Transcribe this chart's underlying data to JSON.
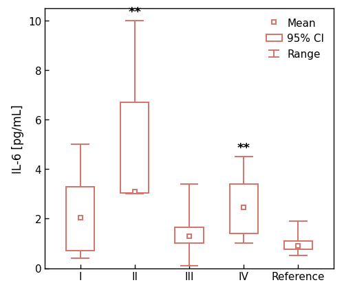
{
  "categories": [
    "I",
    "II",
    "III",
    "IV",
    "Reference"
  ],
  "mean": [
    2.05,
    3.1,
    1.3,
    2.45,
    0.9
  ],
  "ci_low": [
    0.7,
    3.05,
    1.0,
    1.4,
    0.75
  ],
  "ci_high": [
    3.3,
    6.7,
    1.65,
    3.4,
    1.1
  ],
  "range_low": [
    0.4,
    3.0,
    0.1,
    1.0,
    0.5
  ],
  "range_high": [
    5.0,
    10.0,
    3.4,
    4.5,
    1.9
  ],
  "sig_labels": [
    "",
    "**",
    "",
    "**",
    ""
  ],
  "ylabel": "IL-6 [pg/mL]",
  "ylim": [
    0,
    10.5
  ],
  "yticks": [
    0,
    2,
    4,
    6,
    8,
    10
  ],
  "box_color": "#d4736a",
  "box_facecolor": "#ffffff",
  "mean_marker_color": "#d4736a",
  "whisker_color": "#d4736a",
  "background_color": "#ffffff",
  "box_width": 0.52,
  "sig_fontsize": 13,
  "legend_fontsize": 11,
  "ylabel_fontsize": 12,
  "tick_fontsize": 11,
  "linewidth": 1.4
}
